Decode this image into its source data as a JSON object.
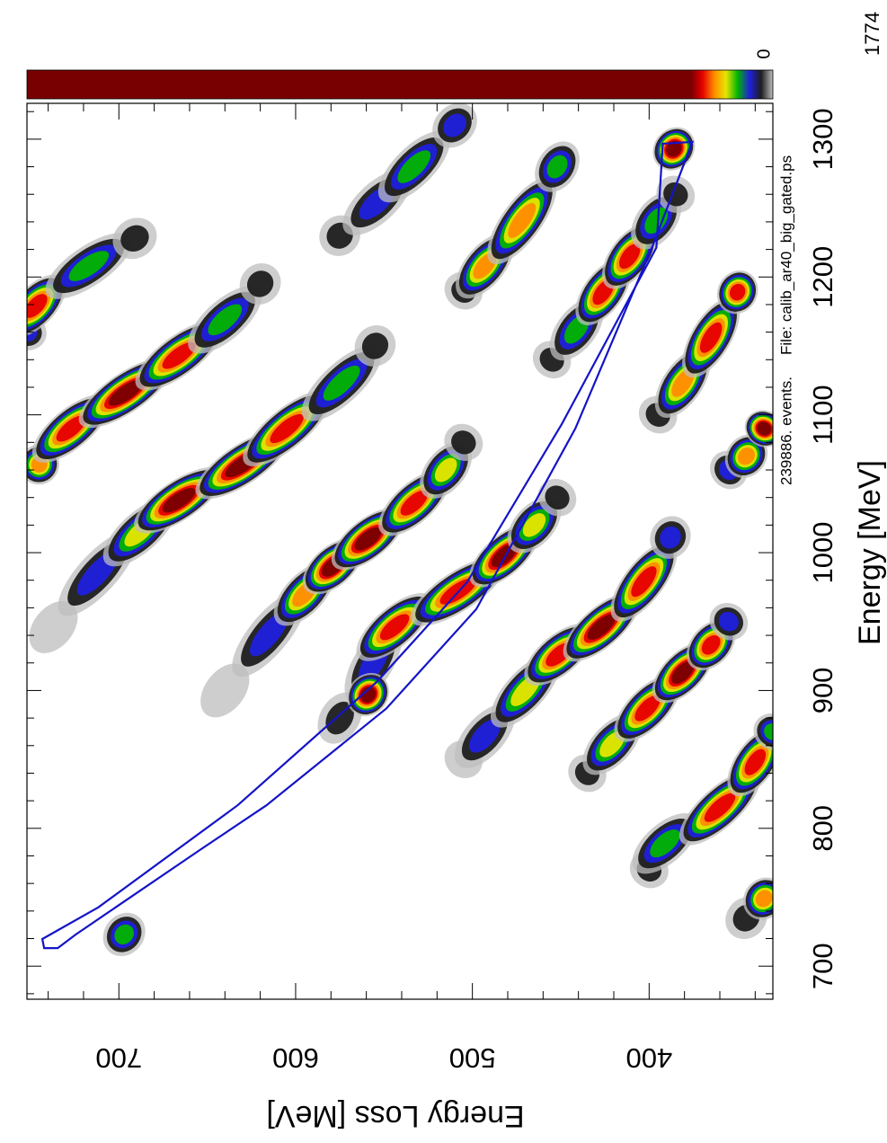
{
  "chart_data": {
    "type": "heatmap2d",
    "x_label": "Energy [MeV]",
    "y_label": "Energy Loss [MeV]",
    "events": "239886. events.",
    "file": "File: calib_ar40_big_gated.ps",
    "xlim": [
      676,
      1326
    ],
    "ylim": [
      330,
      752
    ],
    "xticks": [
      700,
      800,
      900,
      1000,
      1100,
      1200,
      1300
    ],
    "yticks": [
      400,
      500,
      600,
      700
    ],
    "zlim": [
      0,
      1774
    ],
    "palette": [
      "#bdbdbd",
      "#1e1e1e",
      "#1f1fdc",
      "#00b400",
      "#e6e600",
      "#ff8c00",
      "#e60000",
      "#780000"
    ],
    "bands": [
      {
        "x": [
          1160,
          1179,
          1208,
          1228
        ],
        "y": [
          752,
          747,
          717,
          691
        ],
        "values": [
          60,
          190,
          110,
          40
        ]
      },
      {
        "x": [
          1064,
          1090,
          1116,
          1143,
          1169,
          1195
        ],
        "y": [
          745,
          727,
          696,
          666,
          640,
          620
        ],
        "values": [
          150,
          190,
          215,
          180,
          90,
          30
        ]
      },
      {
        "x": [
          946,
          985,
          1015,
          1038,
          1064,
          1090,
          1123,
          1150
        ],
        "y": [
          737,
          712,
          688,
          666,
          630,
          605,
          574,
          555
        ],
        "values": [
          20,
          60,
          130,
          200,
          215,
          190,
          110,
          30
        ]
      },
      {
        "x": [
          900,
          941,
          970,
          990,
          1010,
          1036,
          1060,
          1080
        ],
        "y": [
          640,
          615,
          595,
          579,
          559,
          533,
          515,
          505
        ],
        "values": [
          20,
          60,
          150,
          200,
          210,
          195,
          130,
          40
        ]
      },
      {
        "x": [
          880,
          920,
          946,
          972,
          998,
          1020,
          1040
        ],
        "y": [
          575,
          556,
          544,
          508,
          482,
          465,
          452
        ],
        "values": [
          40,
          60,
          170,
          190,
          200,
          120,
          40
        ]
      },
      {
        "x": [
          850,
          867,
          900,
          926,
          946,
          979,
          1011
        ],
        "y": [
          505,
          493,
          470,
          451,
          427,
          403,
          388
        ],
        "values": [
          20,
          60,
          120,
          190,
          210,
          180,
          60
        ]
      },
      {
        "x": [
          840,
          861,
          887,
          913,
          933,
          950
        ],
        "y": [
          435,
          421,
          401,
          381,
          365,
          355
        ],
        "values": [
          30,
          130,
          190,
          200,
          170,
          60
        ]
      },
      {
        "x": [
          770,
          789,
          815,
          848,
          870
        ],
        "y": [
          400,
          391,
          360,
          340,
          330
        ],
        "values": [
          30,
          90,
          180,
          170,
          100
        ]
      },
      {
        "x": [
          735,
          749
        ],
        "y": [
          345,
          335
        ],
        "values": [
          40,
          150
        ]
      },
      {
        "x": [
          1190,
          1208,
          1241,
          1280
        ],
        "y": [
          505,
          493,
          472,
          452
        ],
        "values": [
          40,
          140,
          150,
          110
        ]
      },
      {
        "x": [
          1140,
          1162,
          1189,
          1215,
          1241,
          1260
        ],
        "y": [
          455,
          441,
          426,
          411,
          396,
          385
        ],
        "values": [
          30,
          110,
          170,
          180,
          100,
          30
        ]
      },
      {
        "x": [
          1100,
          1123,
          1156,
          1189
        ],
        "y": [
          395,
          381,
          365,
          350
        ],
        "values": [
          40,
          160,
          180,
          170
        ]
      },
      {
        "x": [
          1060,
          1070,
          1090
        ],
        "y": [
          355,
          345,
          335
        ],
        "values": [
          60,
          150,
          200
        ]
      },
      {
        "x": [
          1230,
          1254,
          1280,
          1310
        ],
        "y": [
          575,
          554,
          533,
          510
        ],
        "values": [
          30,
          70,
          110,
          60
        ]
      },
      {
        "x": [
          897
        ],
        "y": [
          559
        ],
        "values": [
          260
        ]
      },
      {
        "x": [
          1293
        ],
        "y": [
          386
        ],
        "values": [
          260
        ]
      },
      {
        "x": [
          723
        ],
        "y": [
          697
        ],
        "values": [
          100
        ]
      }
    ],
    "gate": {
      "color": "#1414c8",
      "x": [
        719.7,
        713.1,
        713.1,
        722.9,
        785.2,
        816.7,
        886.9,
        959.0,
        1090.2,
        1221.3,
        1298.0,
        1296.7,
        1221.3,
        1093.4,
        978.7,
        906.6,
        816.7,
        742.6
      ],
      "y": [
        743.3,
        742.3,
        734.6,
        724.5,
        653.1,
        616.5,
        548.7,
        497.8,
        441.7,
        398.4,
        375.5,
        392.3,
        395.9,
        449.4,
        502.9,
        553.8,
        632.8,
        711.7
      ]
    }
  }
}
